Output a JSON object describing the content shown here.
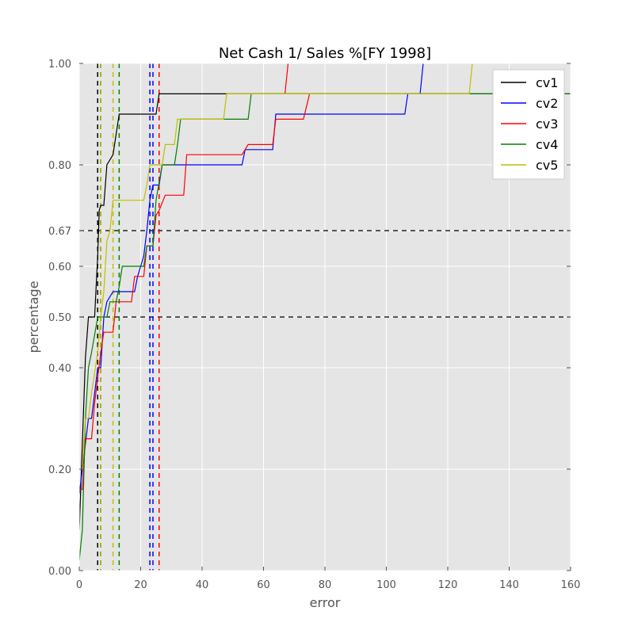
{
  "chart_data": {
    "type": "line",
    "title": "Net Cash 1/ Sales %[FY 1998]",
    "xlabel": "error",
    "ylabel": "percentage",
    "xlim": [
      0,
      160
    ],
    "ylim": [
      0,
      1
    ],
    "xticks": [
      0,
      20,
      40,
      60,
      80,
      100,
      120,
      140,
      160
    ],
    "yticks": [
      0.0,
      0.2,
      0.4,
      0.5,
      0.6,
      0.67,
      0.8,
      1.0
    ],
    "ytick_labels": [
      "0.00",
      "0.20",
      "0.40",
      "0.50",
      "0.60",
      "0.67",
      "0.80",
      "1.00"
    ],
    "yscale": "nonuniform (tick positions as shown)",
    "grid": true,
    "background": "#e5e5e5",
    "legend_position": "upper right",
    "hlines": [
      0.5,
      0.67
    ],
    "series": [
      {
        "name": "cv1",
        "color": "#000000",
        "vlines": [
          6,
          7
        ],
        "points": [
          [
            0,
            0.08
          ],
          [
            1,
            0.25
          ],
          [
            2,
            0.42
          ],
          [
            3,
            0.5
          ],
          [
            5,
            0.5
          ],
          [
            5.5,
            0.56
          ],
          [
            6,
            0.62
          ],
          [
            6.5,
            0.71
          ],
          [
            7,
            0.72
          ],
          [
            8,
            0.72
          ],
          [
            9,
            0.8
          ],
          [
            10,
            0.81
          ],
          [
            11,
            0.82
          ],
          [
            12,
            0.86
          ],
          [
            13,
            0.9
          ],
          [
            25,
            0.9
          ],
          [
            26,
            0.94
          ],
          [
            160,
            0.94
          ]
        ]
      },
      {
        "name": "cv2",
        "color": "#0000ff",
        "vlines": [
          23,
          24
        ],
        "points": [
          [
            0,
            0.15
          ],
          [
            1,
            0.2
          ],
          [
            2,
            0.25
          ],
          [
            3,
            0.3
          ],
          [
            4,
            0.3
          ],
          [
            6,
            0.4
          ],
          [
            7,
            0.4
          ],
          [
            8,
            0.5
          ],
          [
            9,
            0.53
          ],
          [
            11,
            0.55
          ],
          [
            18,
            0.55
          ],
          [
            19,
            0.58
          ],
          [
            20,
            0.6
          ],
          [
            21,
            0.62
          ],
          [
            22,
            0.67
          ],
          [
            23,
            0.73
          ],
          [
            24,
            0.76
          ],
          [
            26,
            0.76
          ],
          [
            27,
            0.8
          ],
          [
            53,
            0.8
          ],
          [
            54,
            0.83
          ],
          [
            63,
            0.83
          ],
          [
            64,
            0.9
          ],
          [
            106,
            0.9
          ],
          [
            107,
            0.94
          ],
          [
            111,
            0.94
          ],
          [
            112,
            1.0
          ]
        ]
      },
      {
        "name": "cv3",
        "color": "#ff0000",
        "vlines": [
          26
        ],
        "points": [
          [
            0,
            0.16
          ],
          [
            1,
            0.16
          ],
          [
            2,
            0.26
          ],
          [
            4,
            0.26
          ],
          [
            5,
            0.33
          ],
          [
            7,
            0.43
          ],
          [
            8,
            0.47
          ],
          [
            11,
            0.47
          ],
          [
            12,
            0.53
          ],
          [
            17,
            0.53
          ],
          [
            18,
            0.58
          ],
          [
            21,
            0.58
          ],
          [
            22,
            0.64
          ],
          [
            24,
            0.64
          ],
          [
            25,
            0.7
          ],
          [
            26,
            0.71
          ],
          [
            28,
            0.74
          ],
          [
            34,
            0.74
          ],
          [
            35,
            0.82
          ],
          [
            53,
            0.82
          ],
          [
            55,
            0.84
          ],
          [
            63,
            0.84
          ],
          [
            64,
            0.89
          ],
          [
            73,
            0.89
          ],
          [
            75,
            0.94
          ],
          [
            67,
            0.94
          ],
          [
            68,
            1.0
          ]
        ]
      },
      {
        "name": "cv4",
        "color": "#008000",
        "vlines": [
          7,
          13
        ],
        "points": [
          [
            0,
            0.02
          ],
          [
            1,
            0.08
          ],
          [
            2,
            0.3
          ],
          [
            3,
            0.4
          ],
          [
            4,
            0.43
          ],
          [
            6,
            0.5
          ],
          [
            9,
            0.5
          ],
          [
            10,
            0.53
          ],
          [
            12,
            0.53
          ],
          [
            13,
            0.56
          ],
          [
            14,
            0.6
          ],
          [
            21,
            0.6
          ],
          [
            22,
            0.64
          ],
          [
            24,
            0.64
          ],
          [
            25,
            0.73
          ],
          [
            27,
            0.8
          ],
          [
            31,
            0.8
          ],
          [
            32,
            0.84
          ],
          [
            33,
            0.89
          ],
          [
            55,
            0.89
          ],
          [
            56,
            0.94
          ],
          [
            160,
            0.94
          ]
        ]
      },
      {
        "name": "cv5",
        "color": "#bfbf00",
        "vlines": [
          7,
          11
        ],
        "points": [
          [
            0,
            0.2
          ],
          [
            1,
            0.2
          ],
          [
            2,
            0.3
          ],
          [
            3,
            0.3
          ],
          [
            4,
            0.35
          ],
          [
            6,
            0.43
          ],
          [
            7,
            0.5
          ],
          [
            8,
            0.55
          ],
          [
            9,
            0.65
          ],
          [
            10,
            0.67
          ],
          [
            11,
            0.73
          ],
          [
            21,
            0.73
          ],
          [
            22,
            0.76
          ],
          [
            23,
            0.8
          ],
          [
            27,
            0.8
          ],
          [
            28,
            0.84
          ],
          [
            31,
            0.84
          ],
          [
            32,
            0.89
          ],
          [
            47,
            0.89
          ],
          [
            48,
            0.94
          ],
          [
            127,
            0.94
          ],
          [
            128,
            1.0
          ]
        ]
      }
    ]
  }
}
